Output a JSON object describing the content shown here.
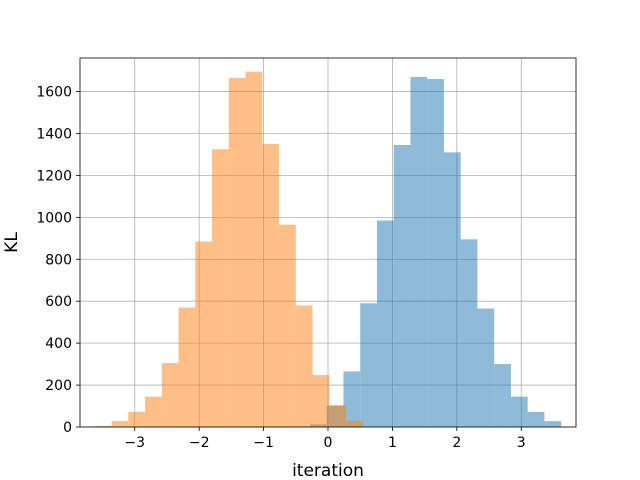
{
  "chart_data": {
    "type": "bar",
    "subtype": "overlapping-histogram",
    "xlabel": "iteration",
    "ylabel": "KL",
    "xlim": [
      -3.85,
      3.85
    ],
    "ylim": [
      0,
      1760
    ],
    "xticks": [
      -3,
      -2,
      -1,
      0,
      1,
      2,
      3
    ],
    "xtick_labels": [
      "−3",
      "−2",
      "−1",
      "0",
      "1",
      "2",
      "3"
    ],
    "yticks": [
      0,
      200,
      400,
      600,
      800,
      1000,
      1200,
      1400,
      1600
    ],
    "ytick_labels": [
      "0",
      "200",
      "400",
      "600",
      "800",
      "1000",
      "1200",
      "1400",
      "1600"
    ],
    "grid": true,
    "series": [
      {
        "color": "#1f77b4",
        "opacity": 0.5,
        "bin_edges": [
          -0.28,
          -0.02,
          0.24,
          0.5,
          0.76,
          1.02,
          1.28,
          1.54,
          1.8,
          2.06,
          2.32,
          2.58,
          2.84,
          3.1,
          3.36,
          3.62
        ],
        "counts": [
          12,
          100,
          265,
          590,
          985,
          1345,
          1670,
          1660,
          1310,
          895,
          565,
          300,
          145,
          72,
          28
        ]
      },
      {
        "color": "#ff7f0e",
        "opacity": 0.5,
        "bin_edges": [
          -3.62,
          -3.36,
          -3.1,
          -2.84,
          -2.58,
          -2.32,
          -2.06,
          -1.8,
          -1.54,
          -1.28,
          -1.02,
          -0.76,
          -0.5,
          -0.24,
          0.02,
          0.28,
          0.54
        ],
        "counts": [
          5,
          28,
          72,
          145,
          305,
          570,
          885,
          1325,
          1665,
          1695,
          1350,
          965,
          580,
          248,
          105,
          30
        ]
      }
    ]
  }
}
